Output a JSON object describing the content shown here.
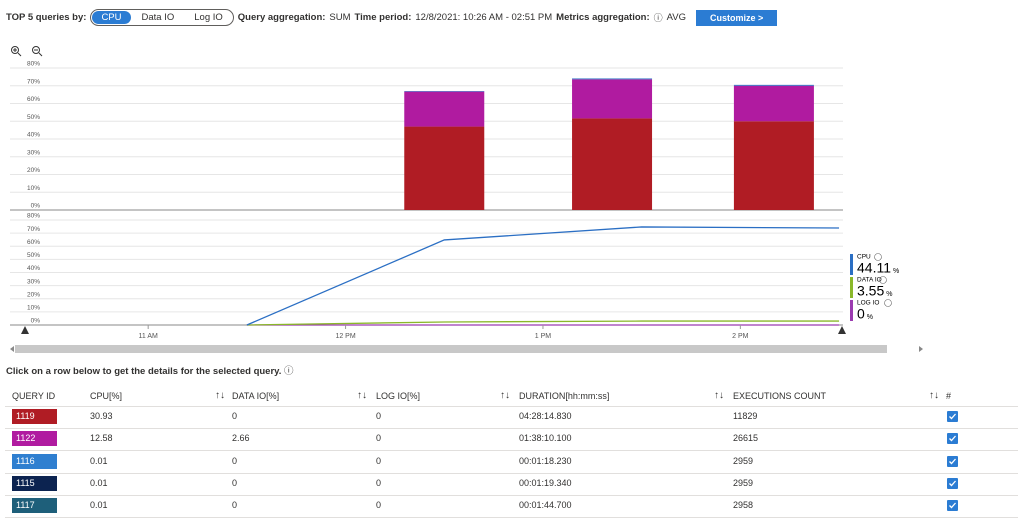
{
  "toolbar": {
    "label": "TOP 5 queries by:",
    "metric_options": [
      "CPU",
      "Data IO",
      "Log IO"
    ],
    "selected_metric": "CPU",
    "aggregation_label": "Query aggregation:",
    "aggregation": "SUM",
    "period_label": "Time period:",
    "period": "12/8/2021: 10:26 AM - 02:51 PM",
    "metrics_aggregation_label": "Metrics aggregation:",
    "metrics_aggregation": "AVG",
    "button": "Customize >"
  },
  "chart_data": [
    {
      "type": "bar",
      "stacked": true,
      "x": [
        12.5,
        13.35,
        14.17
      ],
      "xlim": [
        10.3,
        14.52
      ],
      "ylim": [
        0,
        80
      ],
      "yticks": [
        {
          "value": 0,
          "label": "0%"
        },
        {
          "value": 10,
          "label": "10%"
        },
        {
          "value": 20,
          "label": "20%"
        },
        {
          "value": 30,
          "label": "30%"
        },
        {
          "value": 40,
          "label": "40%"
        },
        {
          "value": 50,
          "label": "50%"
        },
        {
          "value": 60,
          "label": "60%"
        },
        {
          "value": 70,
          "label": "70%"
        },
        {
          "value": 80,
          "label": "80%"
        }
      ],
      "grid": true,
      "series": [
        {
          "color": "#b01c24",
          "values": [
            47,
            51.6,
            50
          ]
        },
        {
          "color": "#b01ba0",
          "values": [
            19.7,
            22,
            20
          ]
        },
        {
          "color": "#2b6fc4",
          "values": [
            0.3,
            0.5,
            0.5
          ]
        }
      ]
    },
    {
      "type": "line",
      "x": [
        11.5,
        12.5,
        13.5,
        14.5
      ],
      "xlim": [
        10.3,
        14.52
      ],
      "xticks": [
        {
          "value": 11,
          "label": "11 AM"
        },
        {
          "value": 12,
          "label": "12 PM"
        },
        {
          "value": 13,
          "label": "1 PM"
        },
        {
          "value": 14,
          "label": "2 PM"
        }
      ],
      "ylim": [
        0,
        80
      ],
      "yticks": [
        {
          "value": 0,
          "label": "0%"
        },
        {
          "value": 10,
          "label": "10%"
        },
        {
          "value": 20,
          "label": "20%"
        },
        {
          "value": 30,
          "label": "30%"
        },
        {
          "value": 40,
          "label": "40%"
        },
        {
          "value": 50,
          "label": "50%"
        },
        {
          "value": 60,
          "label": "60%"
        },
        {
          "value": 70,
          "label": "70%"
        },
        {
          "value": 80,
          "label": "80%"
        }
      ],
      "grid": true,
      "series": [
        {
          "name": "CPU",
          "color": "#2b6fc4",
          "values": [
            0,
            64.8,
            74.7,
            73.9
          ],
          "summary": 44.11
        },
        {
          "name": "DATA IO",
          "color": "#8ab82a",
          "values": [
            0,
            2.3,
            3,
            3
          ],
          "summary": 3.55
        },
        {
          "name": "LOG IO",
          "color": "#9b3bb0",
          "values": [
            0,
            0,
            0,
            0
          ],
          "summary": 0
        }
      ],
      "summary_unit": "%"
    }
  ],
  "instruction": "Click on a row below to get the details for the selected query.",
  "table": {
    "columns": [
      "QUERY ID",
      "CPU[%]",
      "DATA IO[%]",
      "LOG IO[%]",
      "DURATION[hh:mm:ss]",
      "EXECUTIONS COUNT",
      "#"
    ],
    "rows": [
      {
        "id": "1119",
        "color": "#b01c24",
        "cells": [
          "30.93",
          "0",
          "0",
          "04:28:14.830",
          "11829"
        ],
        "checked": true
      },
      {
        "id": "1122",
        "color": "#b01ba0",
        "cells": [
          "12.58",
          "2.66",
          "0",
          "01:38:10.100",
          "26615"
        ],
        "checked": true
      },
      {
        "id": "1116",
        "color": "#2f7fd0",
        "cells": [
          "0.01",
          "0",
          "0",
          "00:01:18.230",
          "2959"
        ],
        "checked": true
      },
      {
        "id": "1115",
        "color": "#0c2350",
        "cells": [
          "0.01",
          "0",
          "0",
          "00:01:19.340",
          "2959"
        ],
        "checked": true
      },
      {
        "id": "1117",
        "color": "#1e5f7a",
        "cells": [
          "0.01",
          "0",
          "0",
          "00:01:44.700",
          "2958"
        ],
        "checked": true
      }
    ]
  }
}
